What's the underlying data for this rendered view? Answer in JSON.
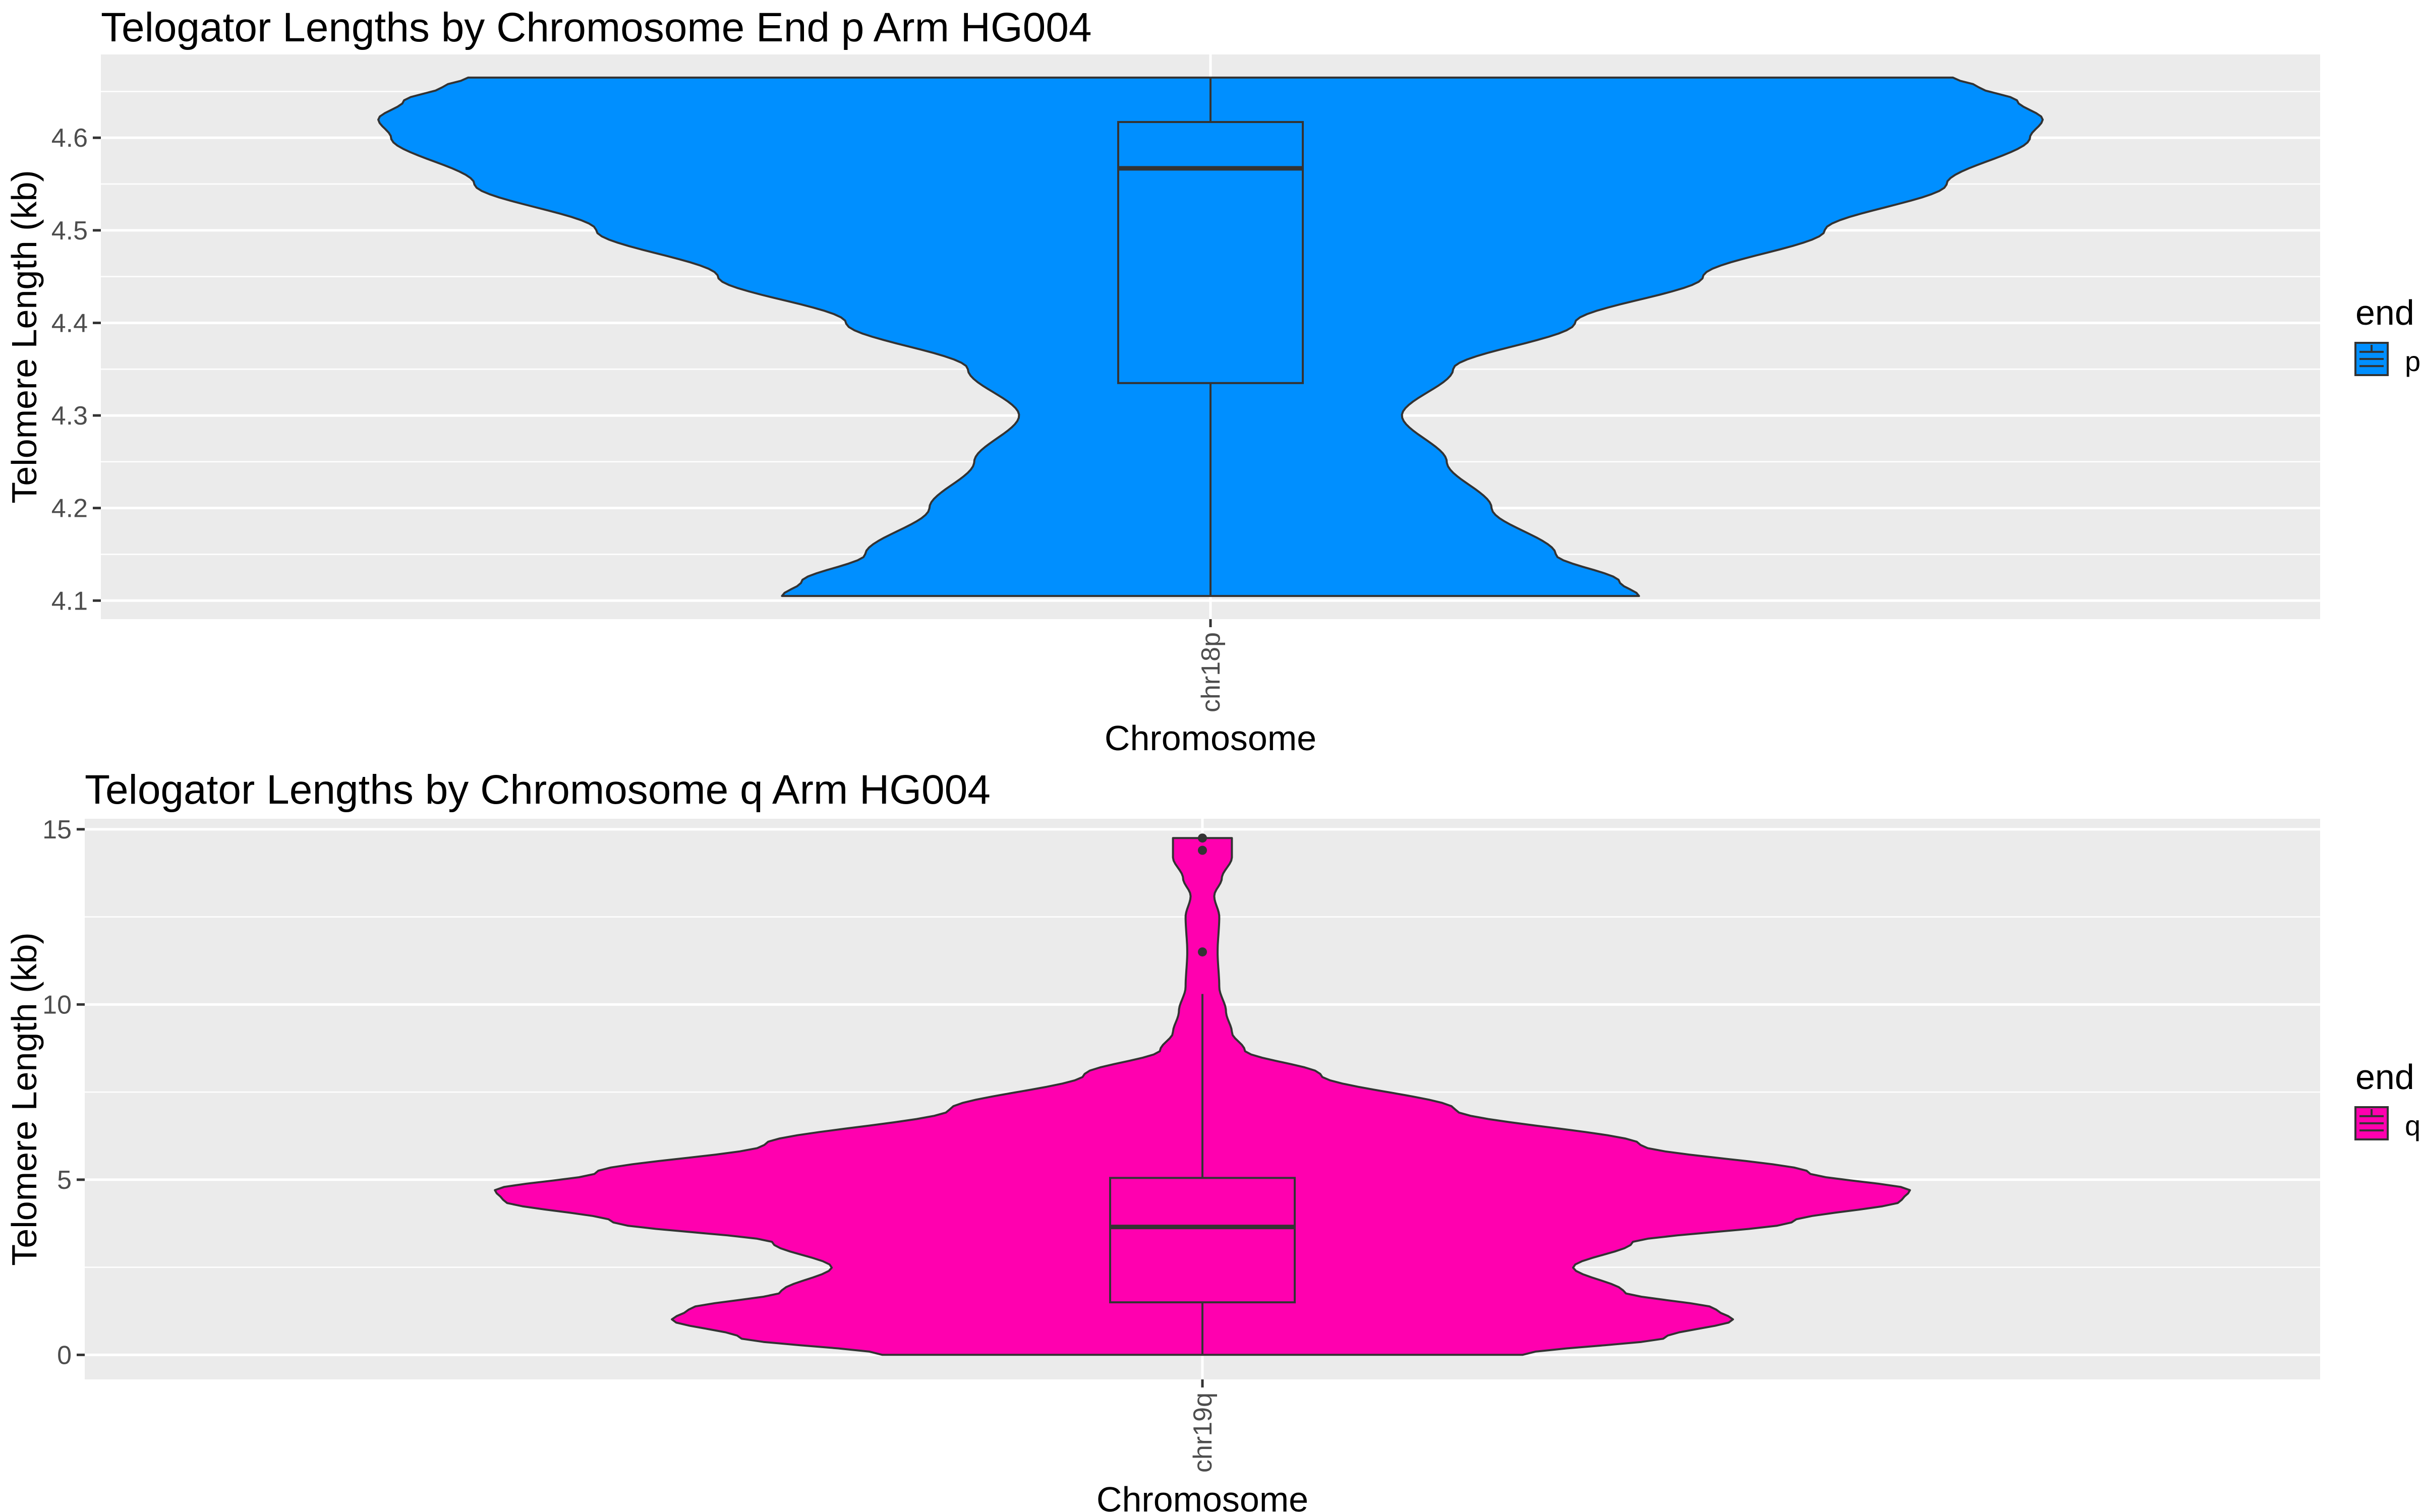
{
  "chart_data": [
    {
      "type": "violin",
      "title": "Telogator Lengths by Chromosome End p Arm HG004",
      "xlabel": "Chromosome",
      "ylabel": "Telomere Length (kb)",
      "categories": [
        "chr18p"
      ],
      "ylim": [
        4.08,
        4.69
      ],
      "yticks": [
        4.1,
        4.2,
        4.3,
        4.4,
        4.5,
        4.6
      ],
      "ytick_labels": [
        "4.1",
        "4.2",
        "4.3",
        "4.4",
        "4.5",
        "4.6"
      ],
      "minor_grid": true,
      "legend": {
        "title": "end",
        "position": "right",
        "items": [
          {
            "label": "p",
            "color": "#008FFF"
          }
        ]
      },
      "fill_color": "#008FFF",
      "violin_density": [
        [
          4.105,
          0.37
        ],
        [
          4.12,
          0.34
        ],
        [
          4.15,
          0.24
        ],
        [
          4.2,
          0.14
        ],
        [
          4.25,
          0.07
        ],
        [
          4.3,
          0.0
        ],
        [
          4.35,
          0.08
        ],
        [
          4.4,
          0.27
        ],
        [
          4.45,
          0.47
        ],
        [
          4.5,
          0.66
        ],
        [
          4.55,
          0.85
        ],
        [
          4.6,
          0.98
        ],
        [
          4.62,
          1.0
        ],
        [
          4.64,
          0.96
        ],
        [
          4.655,
          0.9
        ],
        [
          4.665,
          0.86
        ]
      ],
      "violin_width_min": 0.23,
      "violin_range": [
        4.105,
        4.665
      ],
      "boxplot": {
        "min": 4.105,
        "q1": 4.335,
        "median": 4.567,
        "q3": 4.617,
        "max": 4.665
      },
      "outliers": []
    },
    {
      "type": "violin",
      "title": "Telogator Lengths by Chromosome q Arm HG004",
      "xlabel": "Chromosome",
      "ylabel": "Telomere Length (kb)",
      "categories": [
        "chr19q"
      ],
      "ylim": [
        -0.7,
        15.3
      ],
      "yticks": [
        0,
        5,
        10,
        15
      ],
      "ytick_labels": [
        "0",
        "5",
        "10",
        "15"
      ],
      "minor_grid": true,
      "legend": {
        "title": "end",
        "position": "right",
        "items": [
          {
            "label": "q",
            "color": "#FF00AF"
          }
        ]
      },
      "fill_color": "#FF00AF",
      "violin_density": [
        [
          0.0,
          0.38
        ],
        [
          0.5,
          0.55
        ],
        [
          1.0,
          0.63
        ],
        [
          1.3,
          0.61
        ],
        [
          1.8,
          0.5
        ],
        [
          2.5,
          0.44
        ],
        [
          3.2,
          0.51
        ],
        [
          3.8,
          0.7
        ],
        [
          4.4,
          0.83
        ],
        [
          4.7,
          0.84
        ],
        [
          5.2,
          0.72
        ],
        [
          6.0,
          0.52
        ],
        [
          7.0,
          0.3
        ],
        [
          8.0,
          0.14
        ],
        [
          8.7,
          0.05
        ],
        [
          9.2,
          0.035
        ],
        [
          9.8,
          0.028
        ],
        [
          10.5,
          0.02
        ],
        [
          11.5,
          0.018
        ],
        [
          12.5,
          0.02
        ],
        [
          13.1,
          0.014
        ],
        [
          13.6,
          0.023
        ],
        [
          14.2,
          0.035
        ],
        [
          14.75,
          0.035
        ]
      ],
      "violin_width_min": 0.0,
      "violin_range": [
        0.0,
        14.75
      ],
      "boxplot": {
        "min": 0.0,
        "q1": 1.5,
        "median": 3.65,
        "q3": 5.05,
        "max": 10.3
      },
      "outliers": [
        11.5,
        14.4,
        14.75
      ]
    }
  ]
}
